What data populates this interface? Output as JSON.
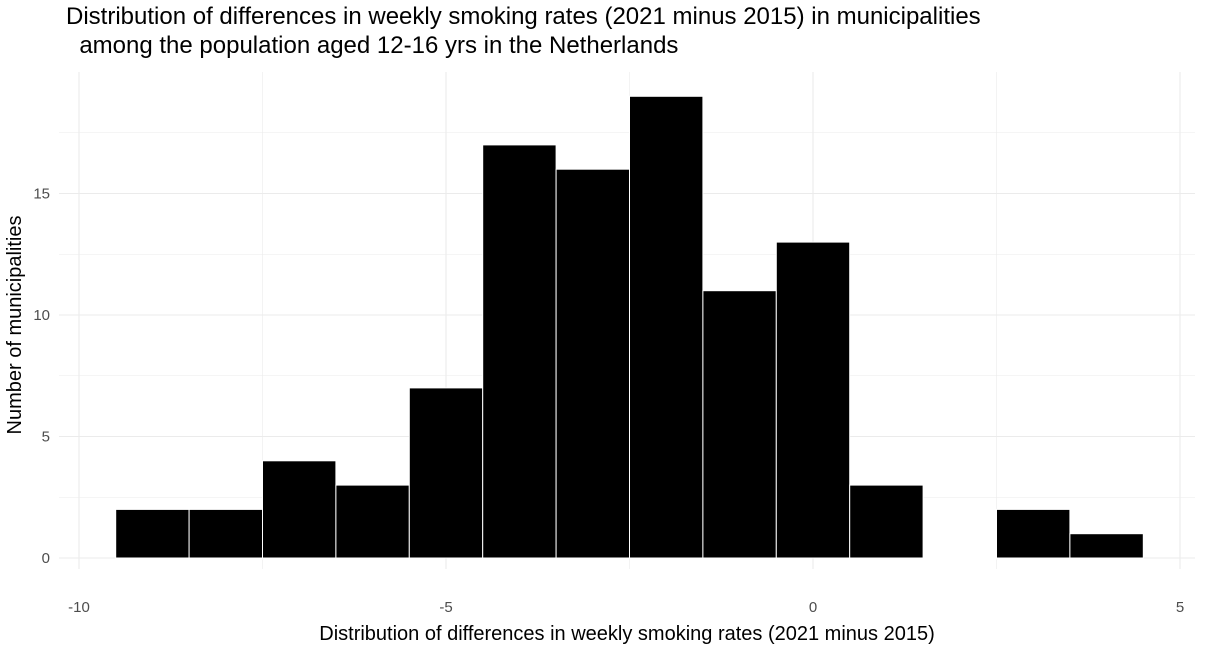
{
  "chart_data": {
    "type": "bar",
    "subtype": "histogram",
    "title_line1": "Distribution of differences in weekly smoking rates (2021 minus 2015) in municipalities",
    "title_line2": "  among the population aged 12-16 yrs in the Netherlands",
    "xlabel": "Distribution of differences in weekly smoking rates (2021 minus 2015)",
    "ylabel": "Number of municipalities",
    "xlim": [
      -10,
      5
    ],
    "ylim": [
      0,
      19
    ],
    "x_ticks": [
      -10,
      -5,
      0,
      5
    ],
    "y_ticks": [
      0,
      5,
      10,
      15
    ],
    "x_tick_labels": [
      "-10",
      "-5",
      "0",
      "5"
    ],
    "y_tick_labels": [
      "0",
      "5",
      "10",
      "15"
    ],
    "grid": true,
    "bin_width": 1,
    "bins": [
      {
        "center": -9,
        "count": 2
      },
      {
        "center": -8,
        "count": 2
      },
      {
        "center": -7,
        "count": 4
      },
      {
        "center": -6,
        "count": 3
      },
      {
        "center": -5,
        "count": 7
      },
      {
        "center": -4,
        "count": 17
      },
      {
        "center": -3,
        "count": 16
      },
      {
        "center": -2,
        "count": 19
      },
      {
        "center": -1,
        "count": 11
      },
      {
        "center": 0,
        "count": 13
      },
      {
        "center": 1,
        "count": 3
      },
      {
        "center": 2,
        "count": 0
      },
      {
        "center": 3,
        "count": 2
      },
      {
        "center": 4,
        "count": 1
      }
    ],
    "colors": {
      "fill": "#000000",
      "outline": "#ffffff",
      "grid": "#ebebeb",
      "tick_text": "#4d4d4d"
    }
  }
}
